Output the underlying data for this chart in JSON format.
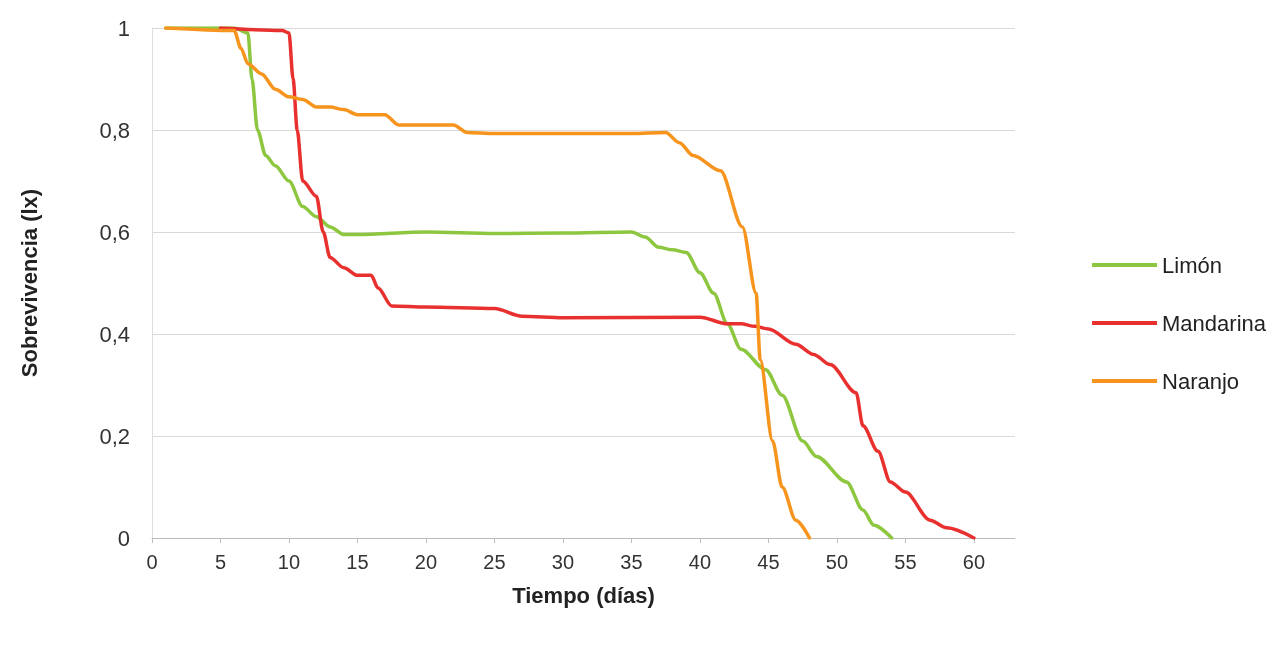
{
  "chart_data": {
    "type": "line",
    "xlabel": "Tiempo (días)",
    "ylabel": "Sobrevivencia (lx)",
    "xlim": [
      0,
      63
    ],
    "xticks": [
      0,
      5,
      10,
      15,
      20,
      25,
      30,
      35,
      40,
      45,
      50,
      55,
      60
    ],
    "ylim": [
      0,
      1
    ],
    "yticks": [
      0,
      {
        "value": 0.2,
        "label": "0,2"
      },
      {
        "value": 0.4,
        "label": "0,4"
      },
      {
        "value": 0.6,
        "label": "0,6"
      },
      {
        "value": 0.8,
        "label": "0,8"
      },
      1
    ],
    "grid": "y",
    "legend": "right",
    "marker": "none",
    "line_style": "solid",
    "series": [
      {
        "name": "Limón",
        "color": "#8dc63f",
        "x": [
          1,
          6,
          7,
          7.3,
          7.7,
          8.3,
          9,
          10,
          11,
          12,
          13,
          14,
          15,
          20,
          25,
          30,
          35,
          36,
          37,
          38,
          39,
          40,
          41,
          42,
          43,
          44.8,
          46,
          47.5,
          48.5,
          50.7,
          51.9,
          52.7,
          54
        ],
        "values": [
          1,
          1,
          0.99,
          0.9,
          0.8,
          0.75,
          0.73,
          0.7,
          0.65,
          0.63,
          0.61,
          0.595,
          0.595,
          0.6,
          0.597,
          0.598,
          0.6,
          0.59,
          0.57,
          0.565,
          0.56,
          0.52,
          0.48,
          0.42,
          0.37,
          0.33,
          0.28,
          0.19,
          0.16,
          0.11,
          0.055,
          0.025,
          0
        ]
      },
      {
        "name": "Mandarina",
        "color": "#e8312f",
        "x": [
          5,
          9.5,
          10,
          10.3,
          10.6,
          11,
          12,
          12.5,
          13,
          14,
          15,
          16,
          16.5,
          17.5,
          20,
          25,
          27,
          30,
          40,
          42,
          43,
          44,
          45,
          47,
          48.3,
          49.5,
          51.4,
          51.9,
          53,
          53.9,
          55,
          56.8,
          58,
          60
        ],
        "values": [
          1,
          0.995,
          0.99,
          0.9,
          0.8,
          0.7,
          0.67,
          0.6,
          0.55,
          0.53,
          0.515,
          0.515,
          0.49,
          0.455,
          0.453,
          0.45,
          0.435,
          0.432,
          0.433,
          0.42,
          0.42,
          0.415,
          0.41,
          0.38,
          0.36,
          0.34,
          0.285,
          0.22,
          0.17,
          0.11,
          0.09,
          0.035,
          0.02,
          0
        ]
      },
      {
        "name": "Naranjo",
        "color": "#f7941d",
        "x": [
          1,
          6,
          6.5,
          7,
          8,
          9,
          10,
          11,
          12,
          13,
          14,
          15,
          17,
          18,
          20,
          22,
          23,
          25,
          30,
          35,
          37.5,
          38.5,
          39.5,
          41.5,
          43.1,
          44.1,
          44.4,
          45.3,
          46,
          47,
          48
        ],
        "values": [
          1,
          0.995,
          0.96,
          0.93,
          0.91,
          0.88,
          0.865,
          0.86,
          0.845,
          0.845,
          0.84,
          0.83,
          0.83,
          0.81,
          0.81,
          0.81,
          0.795,
          0.793,
          0.793,
          0.793,
          0.795,
          0.775,
          0.75,
          0.72,
          0.61,
          0.48,
          0.35,
          0.19,
          0.1,
          0.035,
          0
        ]
      }
    ]
  }
}
